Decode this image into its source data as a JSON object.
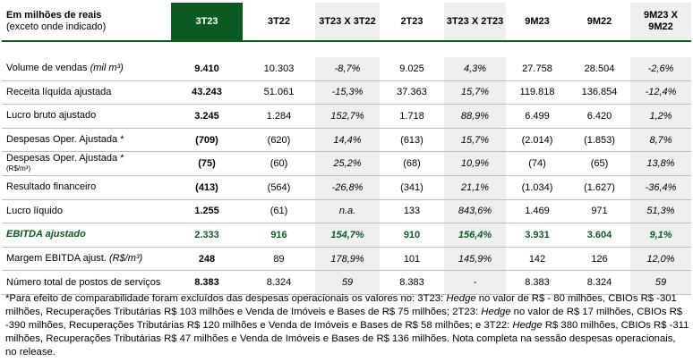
{
  "header": {
    "label_line1": "Em milhões de reais",
    "label_line2": "(exceto onde indicado)",
    "columns": [
      {
        "label": "3T23",
        "style": "hl"
      },
      {
        "label": "3T22",
        "style": "wh"
      },
      {
        "label": "3T23 X 3T22",
        "style": "sh"
      },
      {
        "label": "2T23",
        "style": "wh"
      },
      {
        "label": "3T23 X 2T23",
        "style": "sh"
      },
      {
        "label": "9M23",
        "style": "wh"
      },
      {
        "label": "9M22",
        "style": "wh"
      },
      {
        "label": "9M23 X 9M22",
        "style": "sh"
      }
    ]
  },
  "rows": [
    {
      "label": "Volume de vendas",
      "label_suffix": "(mil m³)",
      "values": [
        "9.410",
        "10.303",
        "-8,7%",
        "9.025",
        "4,3%",
        "27.758",
        "28.504",
        "-2,6%"
      ]
    },
    {
      "label": "Receita líquida ajustada",
      "values": [
        "43.243",
        "51.061",
        "-15,3%",
        "37.363",
        "15,7%",
        "119.818",
        "136.854",
        "-12,4%"
      ]
    },
    {
      "label": "Lucro bruto ajustado",
      "values": [
        "3.245",
        "1.284",
        "152,7%",
        "1.718",
        "88,9%",
        "6.499",
        "6.420",
        "1,2%"
      ]
    },
    {
      "label": "Despesas Oper. Ajustada *",
      "values": [
        "(709)",
        "(620)",
        "14,4%",
        "(613)",
        "15,7%",
        "(2.014)",
        "(1.853)",
        "8,7%"
      ]
    },
    {
      "label": "Despesas Oper. Ajustada *",
      "label_small": "(R$/m³)",
      "values": [
        "(75)",
        "(60)",
        "25,2%",
        "(68)",
        "10,9%",
        "(74)",
        "(65)",
        "13,8%"
      ]
    },
    {
      "label": "Resultado financeiro",
      "values": [
        "(413)",
        "(564)",
        "-26,8%",
        "(341)",
        "21,1%",
        "(1.034)",
        "(1.627)",
        "-36,4%"
      ]
    },
    {
      "label": "Lucro líquido",
      "values": [
        "1.255",
        "(61)",
        "n.a.",
        "133",
        "843,6%",
        "1.469",
        "971",
        "51,3%"
      ]
    },
    {
      "label": "EBITDA ajustado",
      "green": true,
      "values": [
        "2.333",
        "916",
        "154,7%",
        "910",
        "156,4%",
        "3.931",
        "3.604",
        "9,1%"
      ]
    },
    {
      "label": "Margem EBITDA ajust.",
      "label_suffix": "(R$/m³)",
      "values": [
        "248",
        "89",
        "178,9%",
        "101",
        "145,9%",
        "142",
        "126",
        "12,0%"
      ]
    },
    {
      "label": "Número total de postos de serviços",
      "values": [
        "8.383",
        "8.324",
        "59",
        "8.383",
        "-",
        "8.383",
        "8.324",
        "59"
      ]
    }
  ],
  "footnote": [
    {
      "t": "*Para efeito de comparabilidade foram excluídos das despesas operacionais os valores no: 3T23: "
    },
    {
      "t": "Hedge",
      "i": true
    },
    {
      "t": " no valor de R$ - 80 milhões, CBIOs R$ -301 milhões, Recuperações Tributárias R$ 103 milhões e Venda de Imóveis e Bases de R$ 75 milhões; 2T23: "
    },
    {
      "t": "Hedge",
      "i": true
    },
    {
      "t": " no valor de R$ 17 milhões, CBIOs R$ -390 milhões, Recuperações Tributárias R$ 120 milhões e Venda de Imóveis e Bases de R$ 58 milhões; e 3T22: "
    },
    {
      "t": "Hedge",
      "i": true
    },
    {
      "t": " R$ 380 milhões, CBIOs R$ -311 milhões, Recuperações Tributárias R$ 47 milhões e Venda de Imóveis e Bases de R$ 136 milhões. Nota completa na sessão despesas operacionais, no release."
    }
  ]
}
